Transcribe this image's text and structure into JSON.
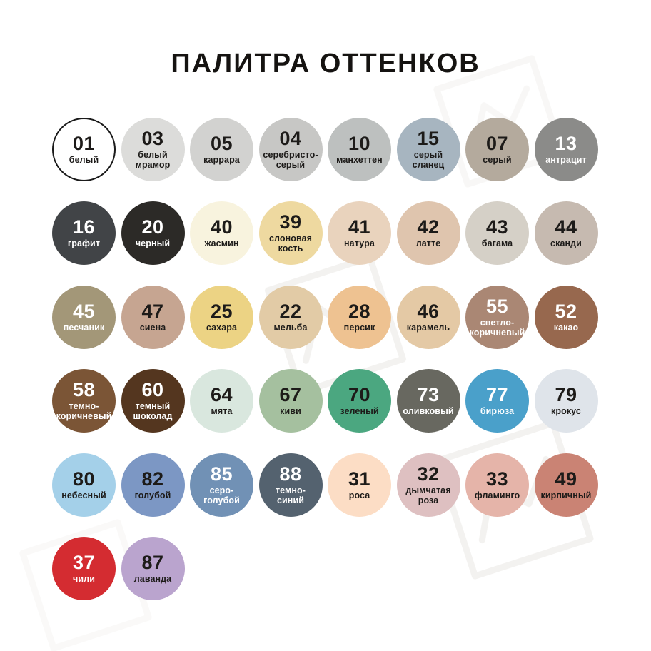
{
  "title": "ПАЛИТРА ОТТЕНКОВ",
  "text_colors": {
    "dark": "#1d1b19",
    "light": "#ffffff"
  },
  "rows": [
    [
      {
        "number": "01",
        "label": "белый",
        "bg": "#ffffff",
        "text": "dark",
        "border": "#1b1b1b"
      },
      {
        "number": "03",
        "label": "белый\nмрамор",
        "bg": "#dcdcda",
        "text": "dark"
      },
      {
        "number": "05",
        "label": "каррара",
        "bg": "#d2d2d0",
        "text": "dark"
      },
      {
        "number": "04",
        "label": "серебристо-\nсерый",
        "bg": "#c7c7c5",
        "text": "dark"
      },
      {
        "number": "10",
        "label": "манхеттен",
        "bg": "#bdc0bf",
        "text": "dark"
      },
      {
        "number": "15",
        "label": "серый\nсланец",
        "bg": "#a7b5c0",
        "text": "dark"
      },
      {
        "number": "07",
        "label": "серый",
        "bg": "#b4aa9d",
        "text": "dark"
      },
      {
        "number": "13",
        "label": "антрацит",
        "bg": "#8b8b89",
        "text": "light"
      }
    ],
    [
      {
        "number": "16",
        "label": "графит",
        "bg": "#414447",
        "text": "light"
      },
      {
        "number": "20",
        "label": "черный",
        "bg": "#2c2a27",
        "text": "light"
      },
      {
        "number": "40",
        "label": "жасмин",
        "bg": "#f8f3de",
        "text": "dark"
      },
      {
        "number": "39",
        "label": "слоновая\nкость",
        "bg": "#eed9a0",
        "text": "dark"
      },
      {
        "number": "41",
        "label": "натура",
        "bg": "#e9d3bd",
        "text": "dark"
      },
      {
        "number": "42",
        "label": "латте",
        "bg": "#dfc5ae",
        "text": "dark"
      },
      {
        "number": "43",
        "label": "багама",
        "bg": "#d5d0c7",
        "text": "dark"
      },
      {
        "number": "44",
        "label": "сканди",
        "bg": "#c6bab0",
        "text": "dark"
      }
    ],
    [
      {
        "number": "45",
        "label": "песчаник",
        "bg": "#a39778",
        "text": "light"
      },
      {
        "number": "47",
        "label": "сиена",
        "bg": "#c6a591",
        "text": "dark"
      },
      {
        "number": "25",
        "label": "сахара",
        "bg": "#ecd384",
        "text": "dark"
      },
      {
        "number": "22",
        "label": "мельба",
        "bg": "#e2cba6",
        "text": "dark"
      },
      {
        "number": "28",
        "label": "персик",
        "bg": "#eec291",
        "text": "dark"
      },
      {
        "number": "46",
        "label": "карамель",
        "bg": "#e4c9a5",
        "text": "dark"
      },
      {
        "number": "55",
        "label": "светло-\nкоричневый",
        "bg": "#aa8774",
        "text": "light"
      },
      {
        "number": "52",
        "label": "какао",
        "bg": "#97684e",
        "text": "light"
      }
    ],
    [
      {
        "number": "58",
        "label": "темно-\nкоричневый",
        "bg": "#7b5536",
        "text": "light"
      },
      {
        "number": "60",
        "label": "темный\nшоколад",
        "bg": "#54361f",
        "text": "light"
      },
      {
        "number": "64",
        "label": "мята",
        "bg": "#d9e7de",
        "text": "dark"
      },
      {
        "number": "67",
        "label": "киви",
        "bg": "#a5c09f",
        "text": "dark"
      },
      {
        "number": "70",
        "label": "зеленый",
        "bg": "#4ba780",
        "text": "dark"
      },
      {
        "number": "73",
        "label": "оливковый",
        "bg": "#686860",
        "text": "light"
      },
      {
        "number": "77",
        "label": "бирюза",
        "bg": "#4aa0ca",
        "text": "light"
      },
      {
        "number": "79",
        "label": "крокус",
        "bg": "#dfe4ea",
        "text": "dark"
      }
    ],
    [
      {
        "number": "80",
        "label": "небесный",
        "bg": "#a4d0e9",
        "text": "dark"
      },
      {
        "number": "82",
        "label": "голубой",
        "bg": "#7c97c4",
        "text": "dark"
      },
      {
        "number": "85",
        "label": "серо-\nголубой",
        "bg": "#7191b5",
        "text": "light"
      },
      {
        "number": "88",
        "label": "темно-\nсиний",
        "bg": "#54626f",
        "text": "light"
      },
      {
        "number": "31",
        "label": "роса",
        "bg": "#fcddc5",
        "text": "dark"
      },
      {
        "number": "32",
        "label": "дымчатая\nроза",
        "bg": "#dec0c1",
        "text": "dark"
      },
      {
        "number": "33",
        "label": "фламинго",
        "bg": "#e5b4a9",
        "text": "dark"
      },
      {
        "number": "49",
        "label": "кирпичный",
        "bg": "#ca8374",
        "text": "dark"
      }
    ],
    [
      {
        "number": "37",
        "label": "чили",
        "bg": "#d42c31",
        "text": "light"
      },
      {
        "number": "87",
        "label": "лаванда",
        "bg": "#baa4ce",
        "text": "dark"
      }
    ]
  ]
}
